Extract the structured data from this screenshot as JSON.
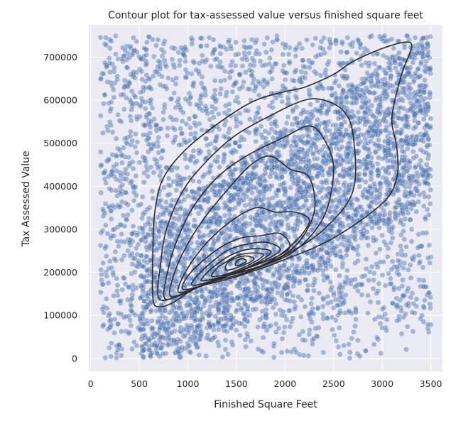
{
  "chart_data": {
    "type": "scatter",
    "title": "Contour plot for tax-assessed value versus finished square feet",
    "xlabel": "Finished Square Feet",
    "ylabel": "Tax Assessed Value",
    "xlim": [
      -20,
      3620
    ],
    "ylim": [
      -30000,
      775000
    ],
    "x_ticks": [
      0,
      500,
      1000,
      1500,
      2000,
      2500,
      3000,
      3500
    ],
    "y_ticks": [
      0,
      100000,
      200000,
      300000,
      400000,
      500000,
      600000,
      700000
    ],
    "grid": true,
    "colors": {
      "background": "#eaeaf2",
      "points": "#4c72b0",
      "contour": "#2b2b2b",
      "grid": "#ffffff"
    },
    "scatter_extent": {
      "x": [
        100,
        3500
      ],
      "y": [
        0,
        750000
      ]
    },
    "contour_levels": [
      [
        [
          640,
          140000
        ],
        [
          700,
          120000
        ],
        [
          850,
          130000
        ],
        [
          1100,
          165000
        ],
        [
          1500,
          190000
        ],
        [
          2000,
          230000
        ],
        [
          2500,
          280000
        ],
        [
          3000,
          360000
        ],
        [
          3150,
          420000
        ],
        [
          3150,
          490000
        ],
        [
          3100,
          560000
        ],
        [
          3200,
          660000
        ],
        [
          3300,
          720000
        ],
        [
          3250,
          735000
        ],
        [
          3000,
          720000
        ],
        [
          2700,
          690000
        ],
        [
          2500,
          660000
        ],
        [
          2200,
          630000
        ],
        [
          2000,
          620000
        ],
        [
          1700,
          600000
        ],
        [
          1400,
          560000
        ],
        [
          1000,
          490000
        ],
        [
          750,
          420000
        ],
        [
          660,
          340000
        ],
        [
          640,
          250000
        ],
        [
          640,
          140000
        ]
      ],
      [
        [
          700,
          140000
        ],
        [
          900,
          145000
        ],
        [
          1200,
          175000
        ],
        [
          1600,
          200000
        ],
        [
          2000,
          240000
        ],
        [
          2400,
          300000
        ],
        [
          2700,
          390000
        ],
        [
          2700,
          520000
        ],
        [
          2600,
          575000
        ],
        [
          2400,
          600000
        ],
        [
          2200,
          600000
        ],
        [
          1900,
          570000
        ],
        [
          1500,
          520000
        ],
        [
          1200,
          460000
        ],
        [
          950,
          390000
        ],
        [
          780,
          300000
        ],
        [
          720,
          220000
        ],
        [
          700,
          140000
        ]
      ],
      [
        [
          760,
          140000
        ],
        [
          950,
          150000
        ],
        [
          1300,
          185000
        ],
        [
          1700,
          210000
        ],
        [
          2100,
          250000
        ],
        [
          2400,
          330000
        ],
        [
          2500,
          440000
        ],
        [
          2400,
          510000
        ],
        [
          2250,
          540000
        ],
        [
          2000,
          515000
        ],
        [
          1600,
          470000
        ],
        [
          1300,
          420000
        ],
        [
          1050,
          350000
        ],
        [
          880,
          270000
        ],
        [
          790,
          200000
        ],
        [
          760,
          140000
        ]
      ],
      [
        [
          820,
          145000
        ],
        [
          1000,
          155000
        ],
        [
          1350,
          190000
        ],
        [
          1750,
          215000
        ],
        [
          2100,
          260000
        ],
        [
          2300,
          340000
        ],
        [
          2250,
          420000
        ],
        [
          2050,
          440000
        ],
        [
          1850,
          470000
        ],
        [
          1650,
          450000
        ],
        [
          1400,
          390000
        ],
        [
          1150,
          320000
        ],
        [
          960,
          250000
        ],
        [
          850,
          190000
        ],
        [
          820,
          145000
        ]
      ],
      [
        [
          900,
          155000
        ],
        [
          1100,
          165000
        ],
        [
          1450,
          195000
        ],
        [
          1800,
          220000
        ],
        [
          2100,
          270000
        ],
        [
          2250,
          320000
        ],
        [
          2100,
          340000
        ],
        [
          1900,
          340000
        ],
        [
          1700,
          350000
        ],
        [
          1450,
          320000
        ],
        [
          1200,
          270000
        ],
        [
          1000,
          210000
        ],
        [
          900,
          155000
        ]
      ],
      [
        [
          950,
          160000
        ],
        [
          1150,
          170000
        ],
        [
          1500,
          200000
        ],
        [
          1900,
          235000
        ],
        [
          2050,
          260000
        ],
        [
          1950,
          290000
        ],
        [
          1750,
          285000
        ],
        [
          1550,
          280000
        ],
        [
          1350,
          260000
        ],
        [
          1120,
          220000
        ],
        [
          980,
          185000
        ],
        [
          950,
          160000
        ]
      ],
      [
        [
          1050,
          170000
        ],
        [
          1250,
          180000
        ],
        [
          1550,
          205000
        ],
        [
          1850,
          235000
        ],
        [
          1950,
          255000
        ],
        [
          1800,
          270000
        ],
        [
          1600,
          265000
        ],
        [
          1400,
          250000
        ],
        [
          1200,
          215000
        ],
        [
          1070,
          185000
        ],
        [
          1050,
          170000
        ]
      ],
      [
        [
          1150,
          180000
        ],
        [
          1350,
          190000
        ],
        [
          1600,
          210000
        ],
        [
          1800,
          235000
        ],
        [
          1850,
          250000
        ],
        [
          1700,
          255000
        ],
        [
          1550,
          250000
        ],
        [
          1400,
          235000
        ],
        [
          1250,
          210000
        ],
        [
          1160,
          190000
        ],
        [
          1150,
          180000
        ]
      ],
      [
        [
          1250,
          190000
        ],
        [
          1450,
          200000
        ],
        [
          1650,
          220000
        ],
        [
          1780,
          240000
        ],
        [
          1680,
          245000
        ],
        [
          1520,
          240000
        ],
        [
          1400,
          225000
        ],
        [
          1300,
          210000
        ],
        [
          1250,
          190000
        ]
      ],
      [
        [
          1400,
          205000
        ],
        [
          1550,
          215000
        ],
        [
          1680,
          230000
        ],
        [
          1600,
          238000
        ],
        [
          1480,
          232000
        ],
        [
          1400,
          220000
        ],
        [
          1400,
          205000
        ]
      ],
      [
        [
          1500,
          215000
        ],
        [
          1600,
          225000
        ],
        [
          1560,
          232000
        ],
        [
          1500,
          225000
        ],
        [
          1500,
          215000
        ]
      ]
    ]
  }
}
